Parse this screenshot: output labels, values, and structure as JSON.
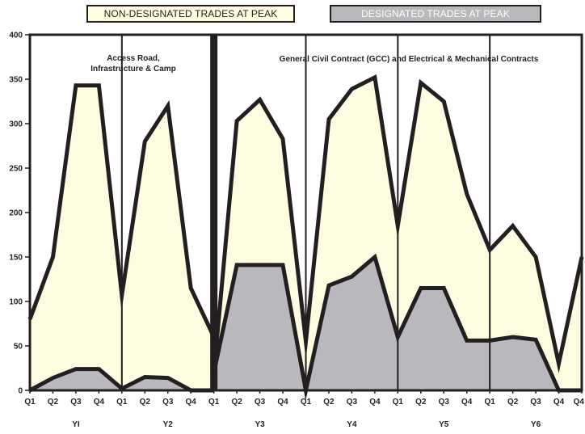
{
  "chart_data": {
    "type": "area",
    "stacked": false,
    "legend": {
      "placement": "top",
      "entries": [
        {
          "label": "NON-DESIGNATED TRADES AT PEAK",
          "color": "#fdfbe0"
        },
        {
          "label": "DESIGNATED TRADES AT PEAK",
          "color": "#b9b9bd"
        }
      ]
    },
    "ylim": [
      0,
      400
    ],
    "yticks": [
      "0",
      "50",
      "100",
      "150",
      "200",
      "250",
      "300",
      "350",
      "400"
    ],
    "x_ticks": [
      "Q1",
      "Q2",
      "Q3",
      "Q4",
      "Q1",
      "Q2",
      "Q3",
      "Q4",
      "Q1",
      "Q2",
      "Q3",
      "Q4",
      "Q1",
      "Q2",
      "Q3",
      "Q4",
      "Q1",
      "Q2",
      "Q3",
      "Q4",
      "Q1",
      "Q2",
      "Q3",
      "Q4",
      "Q4"
    ],
    "years": [
      "YI",
      "Y2",
      "Y3",
      "Y4",
      "Y5",
      "Y6"
    ],
    "phases": [
      {
        "label_line1": "Access Road,",
        "label_line2": "Infrastructure & Camp"
      },
      {
        "label_line1": "General Civil Contract (GCC) and Electrical & Mechanical Contracts",
        "label_line2": ""
      }
    ],
    "series": [
      {
        "name": "NON-DESIGNATED TRADES AT PEAK",
        "segments": [
          {
            "x": [
              0,
              1,
              2,
              3,
              4,
              5,
              6,
              7,
              8
            ],
            "values": [
              80,
              150,
              343,
              343,
              107,
              280,
              320,
              115,
              60
            ]
          },
          {
            "x": [
              8,
              9,
              10,
              11,
              12,
              13,
              14,
              15,
              16,
              17,
              18,
              19,
              20,
              21,
              22,
              23,
              24
            ],
            "values": [
              20,
              303,
              327,
              283,
              55,
              305,
              339,
              352,
              185,
              346,
              325,
              221,
              158,
              185,
              150,
              30,
              150
            ]
          }
        ],
        "color": "#fdfbe0"
      },
      {
        "name": "DESIGNATED TRADES AT PEAK",
        "segments": [
          {
            "x": [
              0,
              1,
              2,
              3,
              4,
              5,
              6,
              7,
              8
            ],
            "values": [
              0,
              14,
              24,
              24,
              2,
              15,
              14,
              0,
              0
            ]
          },
          {
            "x": [
              8,
              9,
              10,
              11,
              12,
              13,
              14,
              15,
              16,
              17,
              18,
              19,
              20,
              21,
              22,
              23,
              24
            ],
            "values": [
              20,
              141,
              141,
              141,
              0,
              118,
              128,
              150,
              60,
              115,
              115,
              56,
              56,
              60,
              57,
              0,
              0
            ]
          }
        ],
        "color": "#b9b9bd"
      }
    ]
  }
}
